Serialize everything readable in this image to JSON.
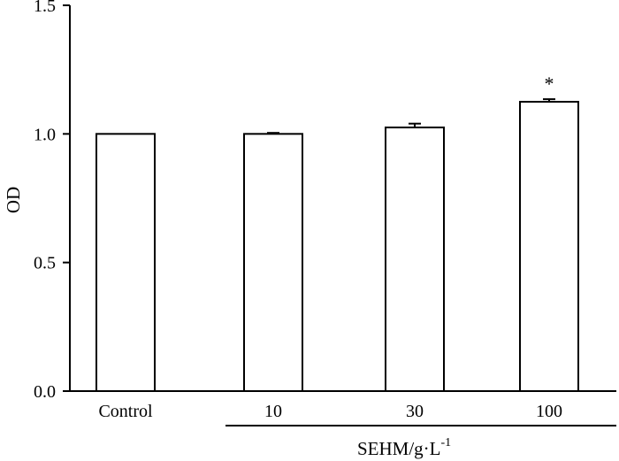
{
  "chart_data": {
    "type": "bar",
    "categories": [
      "Control",
      "10",
      "30",
      "100"
    ],
    "values": [
      1.0,
      1.0,
      1.025,
      1.125
    ],
    "errors": [
      0,
      0.004,
      0.015,
      0.01
    ],
    "annotations": [
      "",
      "",
      "",
      "*"
    ],
    "ylabel": "OD",
    "xlabel_group": {
      "text": "SEHM/g·L",
      "superscript": "-1",
      "spans": [
        "10",
        "30",
        "100"
      ]
    },
    "ylim": [
      0,
      1.5
    ],
    "yticks": [
      0.0,
      0.5,
      1.0,
      1.5
    ],
    "ytick_labels": [
      "0.0",
      "0.5",
      "1.0",
      "1.5"
    ],
    "grid": false,
    "colors": {
      "bar_fill": "#ffffff",
      "bar_stroke": "#000000",
      "axis": "#000000"
    }
  }
}
